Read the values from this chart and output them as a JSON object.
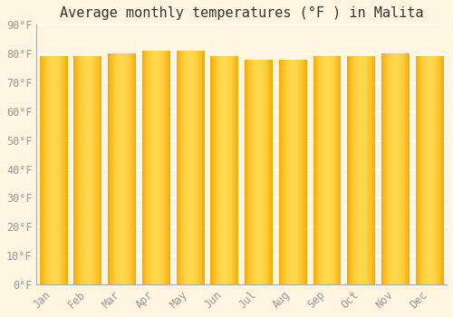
{
  "title": "Average monthly temperatures (°F ) in Malita",
  "months": [
    "Jan",
    "Feb",
    "Mar",
    "Apr",
    "May",
    "Jun",
    "Jul",
    "Aug",
    "Sep",
    "Oct",
    "Nov",
    "Dec"
  ],
  "values": [
    79,
    79,
    80,
    81,
    81,
    79,
    78,
    78,
    79,
    79,
    80,
    79
  ],
  "bar_color_edge": "#F5A800",
  "bar_color_center": "#FFD84D",
  "background_color": "#FFF5E0",
  "plot_bg_color": "#FFF5E0",
  "grid_color": "#FFFFFF",
  "axis_color": "#AAAAAA",
  "tick_color": "#999999",
  "ylim": [
    0,
    90
  ],
  "yticks": [
    0,
    10,
    20,
    30,
    40,
    50,
    60,
    70,
    80,
    90
  ],
  "title_fontsize": 11,
  "tick_fontsize": 8.5,
  "bar_width": 0.82
}
